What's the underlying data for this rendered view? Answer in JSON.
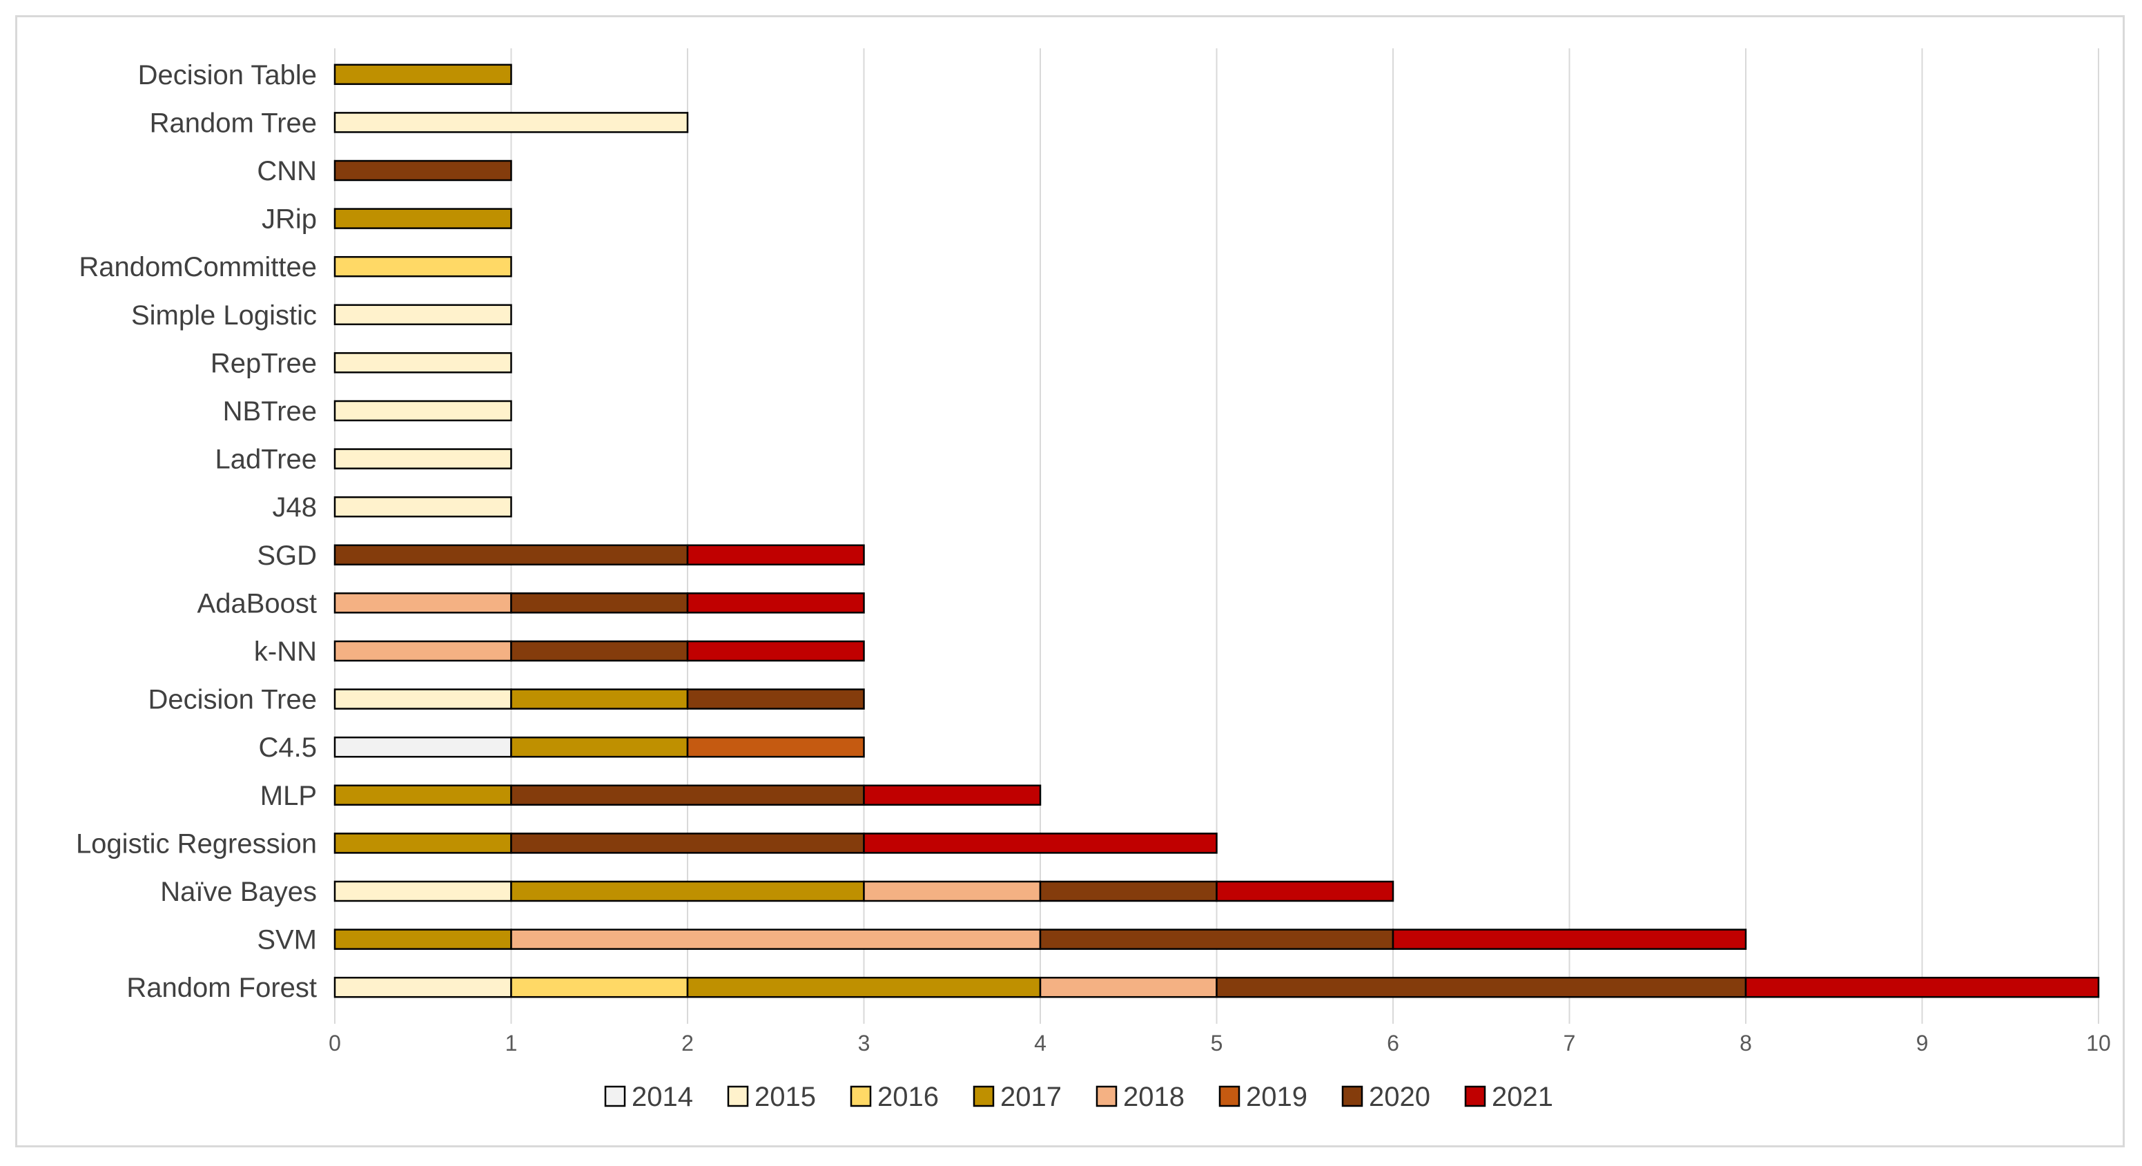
{
  "chart_data": {
    "type": "bar",
    "orientation": "horizontal",
    "stacked": true,
    "categories": [
      "Random Forest",
      "SVM",
      "Naïve Bayes",
      "Logistic Regression",
      "MLP",
      "C4.5",
      "Decision Tree",
      "k-NN",
      "AdaBoost",
      "SGD",
      "J48",
      "LadTree",
      "NBTree",
      "RepTree",
      "Simple Logistic",
      "RandomCommittee",
      "JRip",
      "CNN",
      "Random Tree",
      "Decision Table"
    ],
    "series": [
      {
        "name": "2014",
        "color": "#f2f2f2",
        "values": [
          0,
          0,
          0,
          0,
          0,
          1,
          0,
          0,
          0,
          0,
          0,
          0,
          0,
          0,
          0,
          0,
          0,
          0,
          0,
          0
        ]
      },
      {
        "name": "2015",
        "color": "#fff2cc",
        "values": [
          1,
          0,
          1,
          0,
          0,
          0,
          1,
          0,
          0,
          0,
          1,
          1,
          1,
          1,
          1,
          0,
          0,
          0,
          2,
          0
        ]
      },
      {
        "name": "2016",
        "color": "#ffd966",
        "values": [
          1,
          0,
          0,
          0,
          0,
          0,
          0,
          0,
          0,
          0,
          0,
          0,
          0,
          0,
          0,
          1,
          0,
          0,
          0,
          0
        ]
      },
      {
        "name": "2017",
        "color": "#bf9000",
        "values": [
          2,
          1,
          2,
          1,
          1,
          1,
          1,
          0,
          0,
          0,
          0,
          0,
          0,
          0,
          0,
          0,
          1,
          0,
          0,
          1
        ]
      },
      {
        "name": "2018",
        "color": "#f4b183",
        "values": [
          1,
          3,
          1,
          0,
          0,
          0,
          0,
          1,
          1,
          0,
          0,
          0,
          0,
          0,
          0,
          0,
          0,
          0,
          0,
          0
        ]
      },
      {
        "name": "2019",
        "color": "#c55a11",
        "values": [
          0,
          0,
          0,
          0,
          0,
          1,
          0,
          0,
          0,
          0,
          0,
          0,
          0,
          0,
          0,
          0,
          0,
          0,
          0,
          0
        ]
      },
      {
        "name": "2020",
        "color": "#843c0c",
        "values": [
          3,
          2,
          1,
          2,
          2,
          0,
          1,
          1,
          1,
          2,
          0,
          0,
          0,
          0,
          0,
          0,
          0,
          1,
          0,
          0
        ]
      },
      {
        "name": "2021",
        "color": "#c00000",
        "values": [
          2,
          2,
          1,
          2,
          1,
          0,
          0,
          1,
          1,
          1,
          0,
          0,
          0,
          0,
          0,
          0,
          0,
          0,
          0,
          0
        ]
      }
    ],
    "xlim": [
      0,
      10
    ],
    "xticks": [
      "0",
      "1",
      "2",
      "3",
      "4",
      "5",
      "6",
      "7",
      "8",
      "9",
      "10"
    ],
    "grid": true,
    "legend_position": "bottom",
    "title": "",
    "xlabel": "",
    "ylabel": ""
  }
}
